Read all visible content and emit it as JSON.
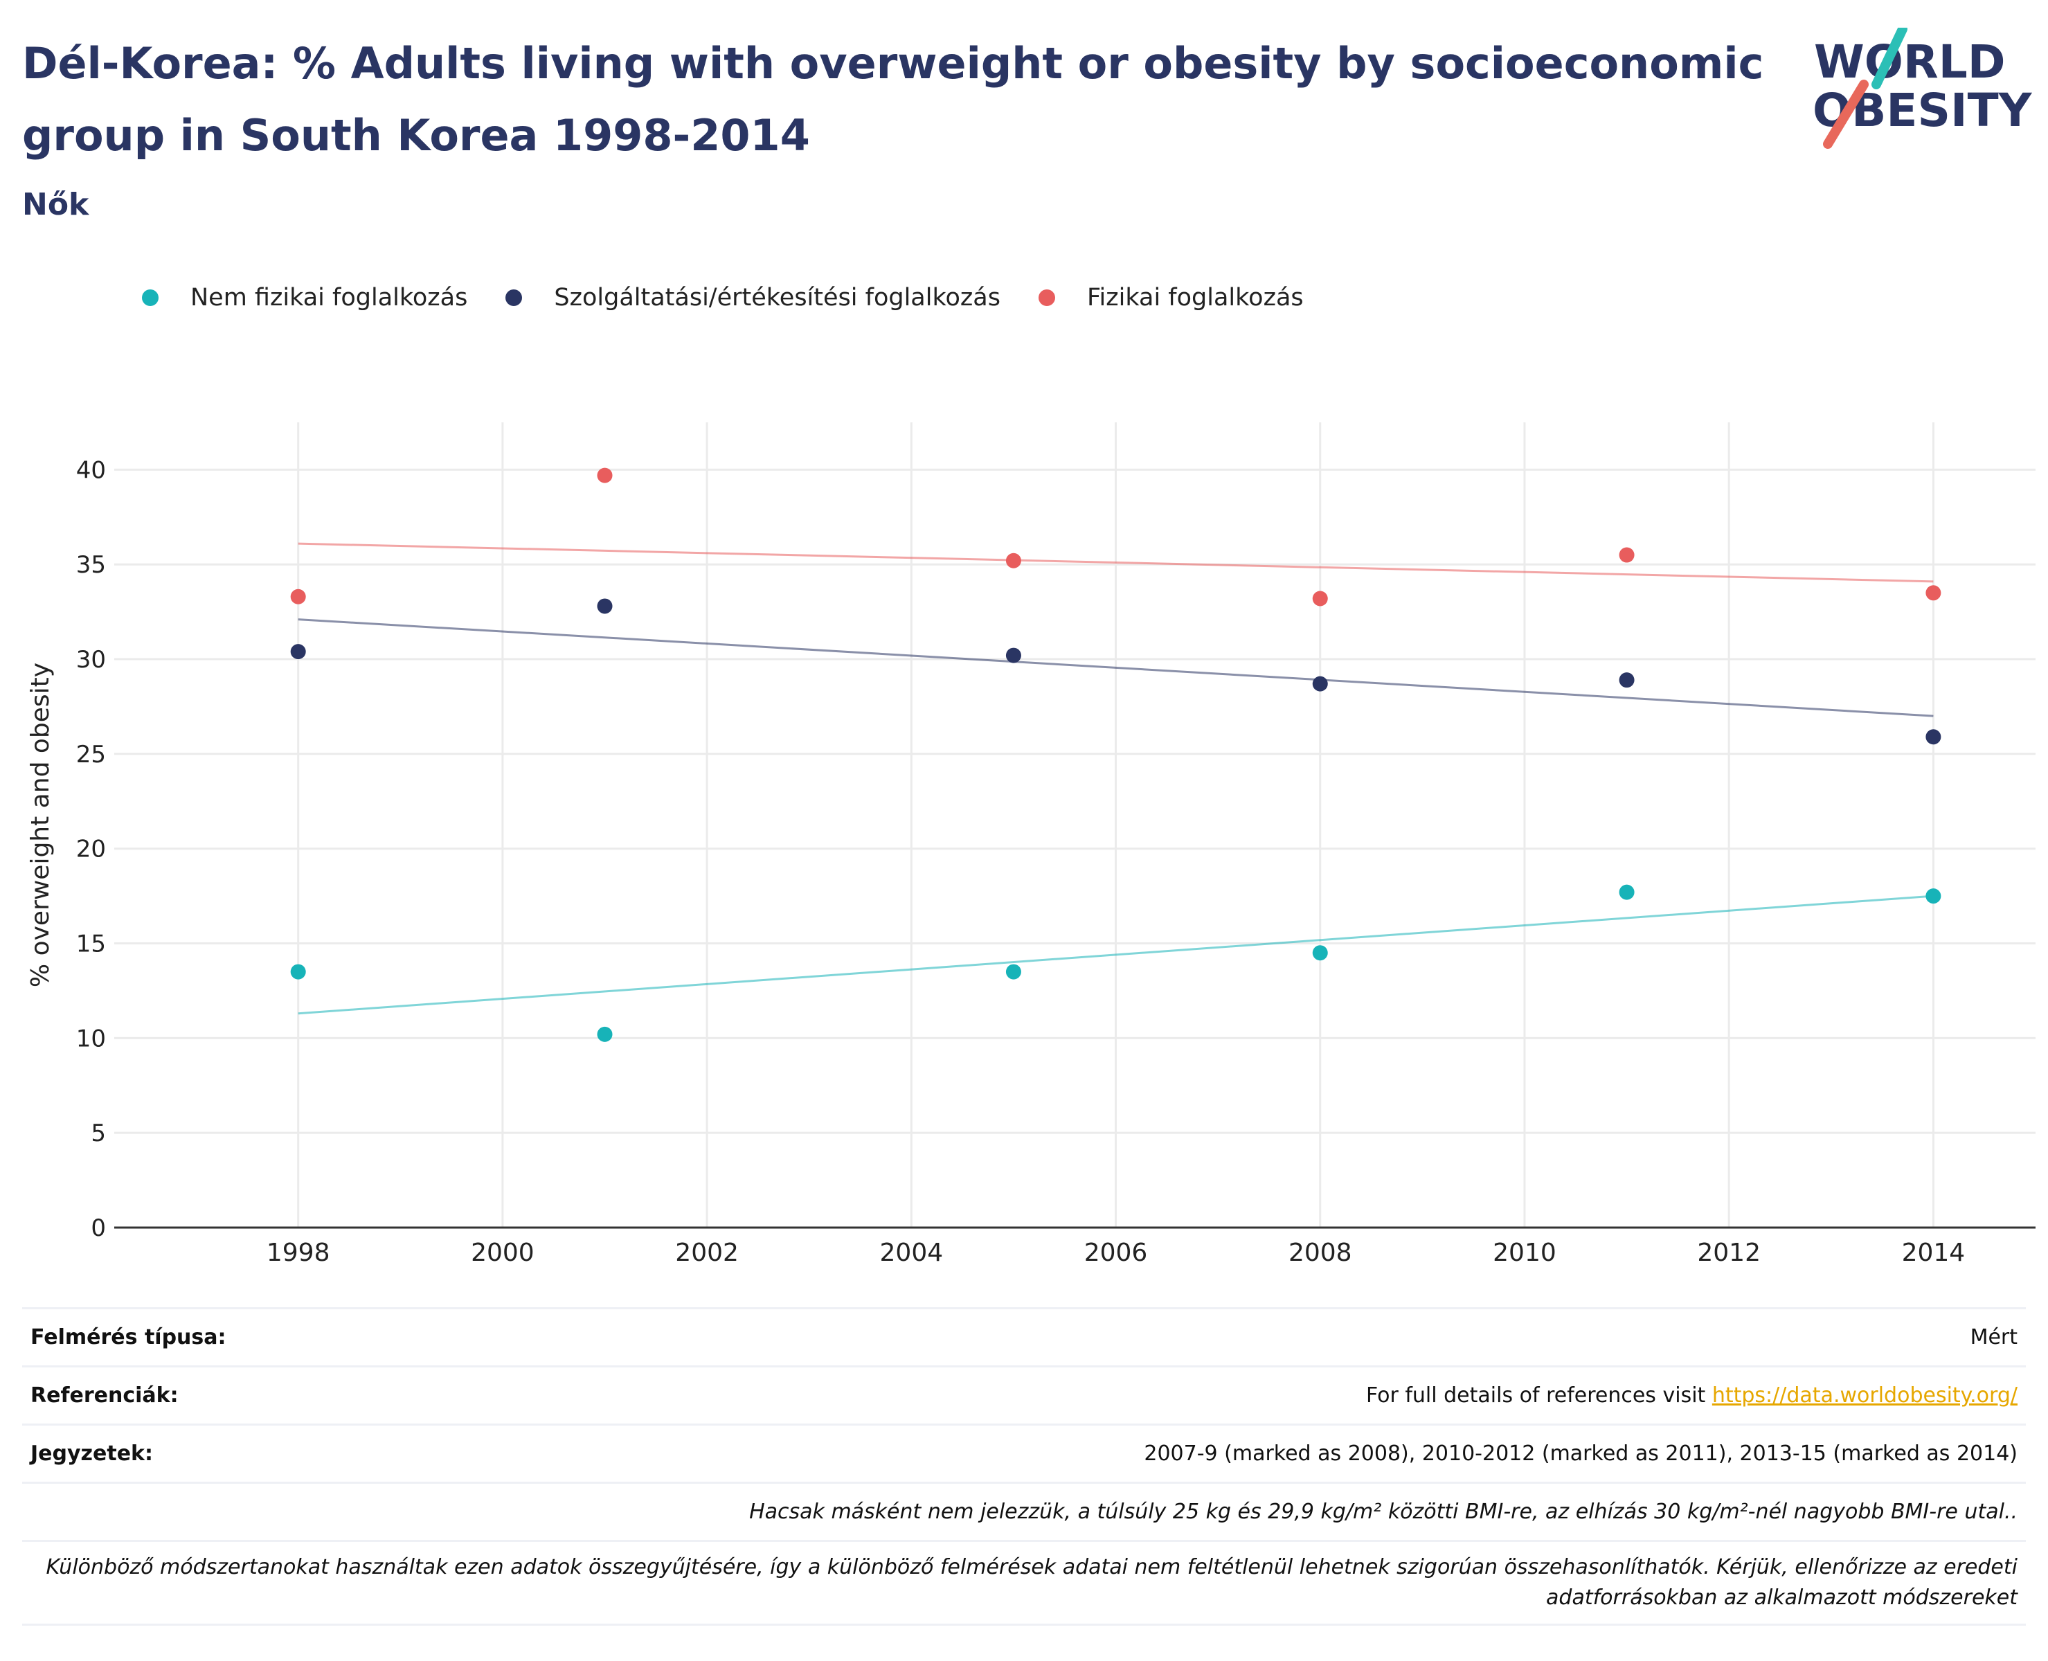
{
  "title": "Dél-Korea: % Adults living with overweight or obesity by socioeconomic group in South Korea 1998-2014",
  "subtitle": "Nők",
  "logo": {
    "line1": "WORLD",
    "line2": "OBESITY"
  },
  "colors": {
    "title": "#2a3563",
    "teal": "#17b3b8",
    "navy": "#2a3563",
    "coral": "#e85d5d",
    "link": "#e6a700"
  },
  "chart_data": {
    "type": "scatter",
    "ylabel": "% overweight and obesity",
    "xlabel": "",
    "xlim": [
      1996.2,
      2015
    ],
    "ylim": [
      0,
      42.5
    ],
    "xticks": [
      1998,
      2000,
      2002,
      2004,
      2006,
      2008,
      2010,
      2012,
      2014
    ],
    "yticks": [
      0,
      5,
      10,
      15,
      20,
      25,
      30,
      35,
      40
    ],
    "grid": true,
    "legend_position": "top-left",
    "series": [
      {
        "name": "Nem fizikai foglalkozás",
        "color": "#17b3b8",
        "x": [
          1998,
          2001,
          2005,
          2008,
          2011,
          2014
        ],
        "y": [
          13.5,
          10.2,
          13.5,
          14.5,
          17.7,
          17.5
        ],
        "trend": [
          11.3,
          17.5
        ]
      },
      {
        "name": "Szolgáltatási/értékesítési foglalkozás",
        "color": "#2a3563",
        "x": [
          1998,
          2001,
          2005,
          2008,
          2011,
          2014
        ],
        "y": [
          30.4,
          32.8,
          30.2,
          28.7,
          28.9,
          25.9
        ],
        "trend": [
          32.1,
          27.0
        ]
      },
      {
        "name": "Fizikai foglalkozás",
        "color": "#e85d5d",
        "x": [
          1998,
          2001,
          2005,
          2008,
          2011,
          2014
        ],
        "y": [
          33.3,
          39.7,
          35.2,
          33.2,
          35.5,
          33.5
        ],
        "trend": [
          36.1,
          34.1
        ]
      }
    ]
  },
  "meta": {
    "survey_label": "Felmérés típusa:",
    "survey_value": "Mért",
    "refs_label": "Referenciák:",
    "refs_text": "For full details of references visit ",
    "refs_link": "https://data.worldobesity.org/",
    "notes_label": "Jegyzetek:",
    "notes_value": "2007-9 (marked as 2008), 2010-2012 (marked as 2011), 2013-15 (marked as 2014)",
    "bmi_note": "Hacsak másként nem jelezzük, a túlsúly 25 kg és 29,9 kg/m² közötti BMI-re, az elhízás 30 kg/m²-nél nagyobb BMI-re utal..",
    "method_note": "Különböző módszertanokat használtak ezen adatok összegyűjtésére, így a különböző felmérések adatai nem feltétlenül lehetnek szigorúan összehasonlíthatók. Kérjük, ellenőrizze az eredeti adatforrásokban az alkalmazott módszereket"
  }
}
